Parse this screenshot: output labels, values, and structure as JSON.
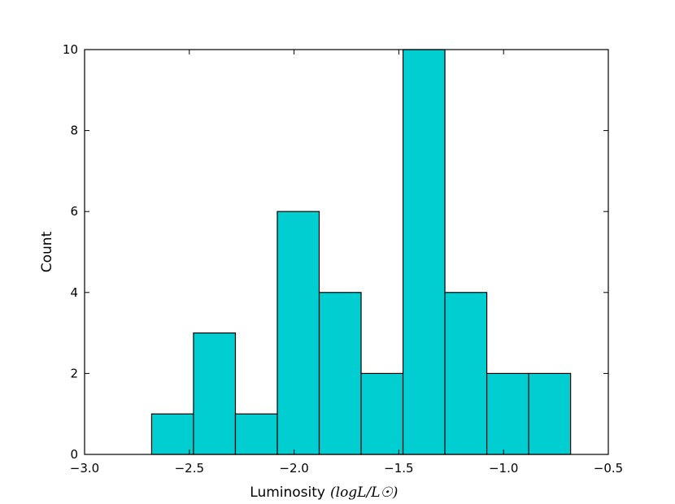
{
  "chart_data": {
    "type": "bar",
    "title": "",
    "xlabel": "Luminosity",
    "xlabel_math": "(logL/L☉)",
    "ylabel": "Count",
    "xlim": [
      -3.0,
      -0.5
    ],
    "ylim": [
      0,
      10
    ],
    "grid": false,
    "bar_color": "#00ced1",
    "edge_color": "#000000",
    "x_ticks": [
      -3.0,
      -2.5,
      -2.0,
      -1.5,
      -1.0,
      -0.5
    ],
    "x_tick_labels": [
      "−3.0",
      "−2.5",
      "−2.0",
      "−1.5",
      "−1.0",
      "−0.5"
    ],
    "y_ticks": [
      0,
      2,
      4,
      6,
      8,
      10
    ],
    "y_tick_labels": [
      "0",
      "2",
      "4",
      "6",
      "8",
      "10"
    ],
    "bins": [
      {
        "x0": -2.68,
        "x1": -2.48,
        "count": 1
      },
      {
        "x0": -2.48,
        "x1": -2.28,
        "count": 3
      },
      {
        "x0": -2.28,
        "x1": -2.08,
        "count": 1
      },
      {
        "x0": -2.08,
        "x1": -1.88,
        "count": 6
      },
      {
        "x0": -1.88,
        "x1": -1.68,
        "count": 4
      },
      {
        "x0": -1.68,
        "x1": -1.48,
        "count": 2
      },
      {
        "x0": -1.48,
        "x1": -1.28,
        "count": 10
      },
      {
        "x0": -1.28,
        "x1": -1.08,
        "count": 4
      },
      {
        "x0": -1.08,
        "x1": -0.88,
        "count": 2
      },
      {
        "x0": -0.88,
        "x1": -0.68,
        "count": 2
      }
    ]
  }
}
